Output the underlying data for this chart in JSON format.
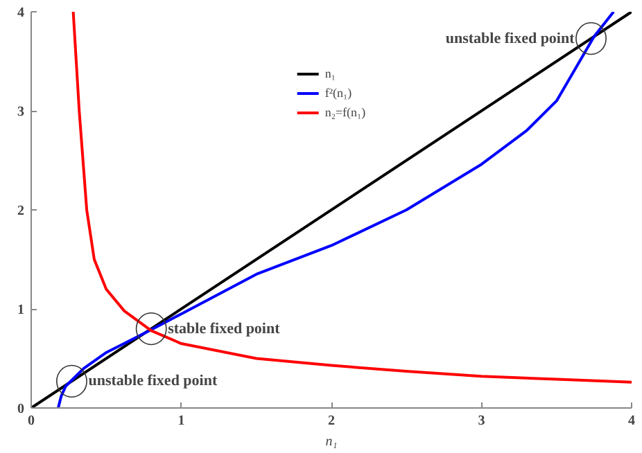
{
  "chart_data": {
    "type": "line",
    "xlabel": "n₁",
    "xlim": [
      0,
      4
    ],
    "ylim": [
      0,
      4
    ],
    "xticks": [
      0,
      1,
      2,
      3,
      4
    ],
    "yticks": [
      0,
      1,
      2,
      3,
      4
    ],
    "grid": false,
    "legend": "top",
    "line_style": "solid",
    "marker": "none",
    "series": [
      {
        "name": "n₁",
        "color": "#000000",
        "x": [
          0,
          4
        ],
        "values": [
          0,
          4
        ]
      },
      {
        "name": "f²(n₁)",
        "color": "#0000ff",
        "x": [
          0.18,
          0.2,
          0.23,
          0.27,
          0.35,
          0.5,
          0.8,
          1,
          1.5,
          2,
          2.5,
          3,
          3.3,
          3.5,
          3.75,
          3.88
        ],
        "values": [
          0,
          0.12,
          0.22,
          0.28,
          0.4,
          0.56,
          0.79,
          0.95,
          1.35,
          1.64,
          2.0,
          2.46,
          2.8,
          3.1,
          3.75,
          4
        ]
      },
      {
        "name": "n₂=f(n₁)",
        "color": "#ff0000",
        "x": [
          0.28,
          0.3,
          0.32,
          0.345,
          0.37,
          0.42,
          0.5,
          0.62,
          0.8,
          1,
          1.5,
          2,
          2.5,
          3,
          3.5,
          4
        ],
        "values": [
          4,
          3.5,
          3,
          2.5,
          2,
          1.5,
          1.2,
          0.98,
          0.78,
          0.65,
          0.5,
          0.43,
          0.37,
          0.32,
          0.29,
          0.26
        ]
      }
    ],
    "annotations": [
      {
        "text": "unstable fixed point",
        "x": 0.27,
        "y": 0.27
      },
      {
        "text": "stable fixed point",
        "x": 0.8,
        "y": 0.8
      },
      {
        "text": "unstable fixed point",
        "x": 3.73,
        "y": 3.73
      }
    ]
  }
}
